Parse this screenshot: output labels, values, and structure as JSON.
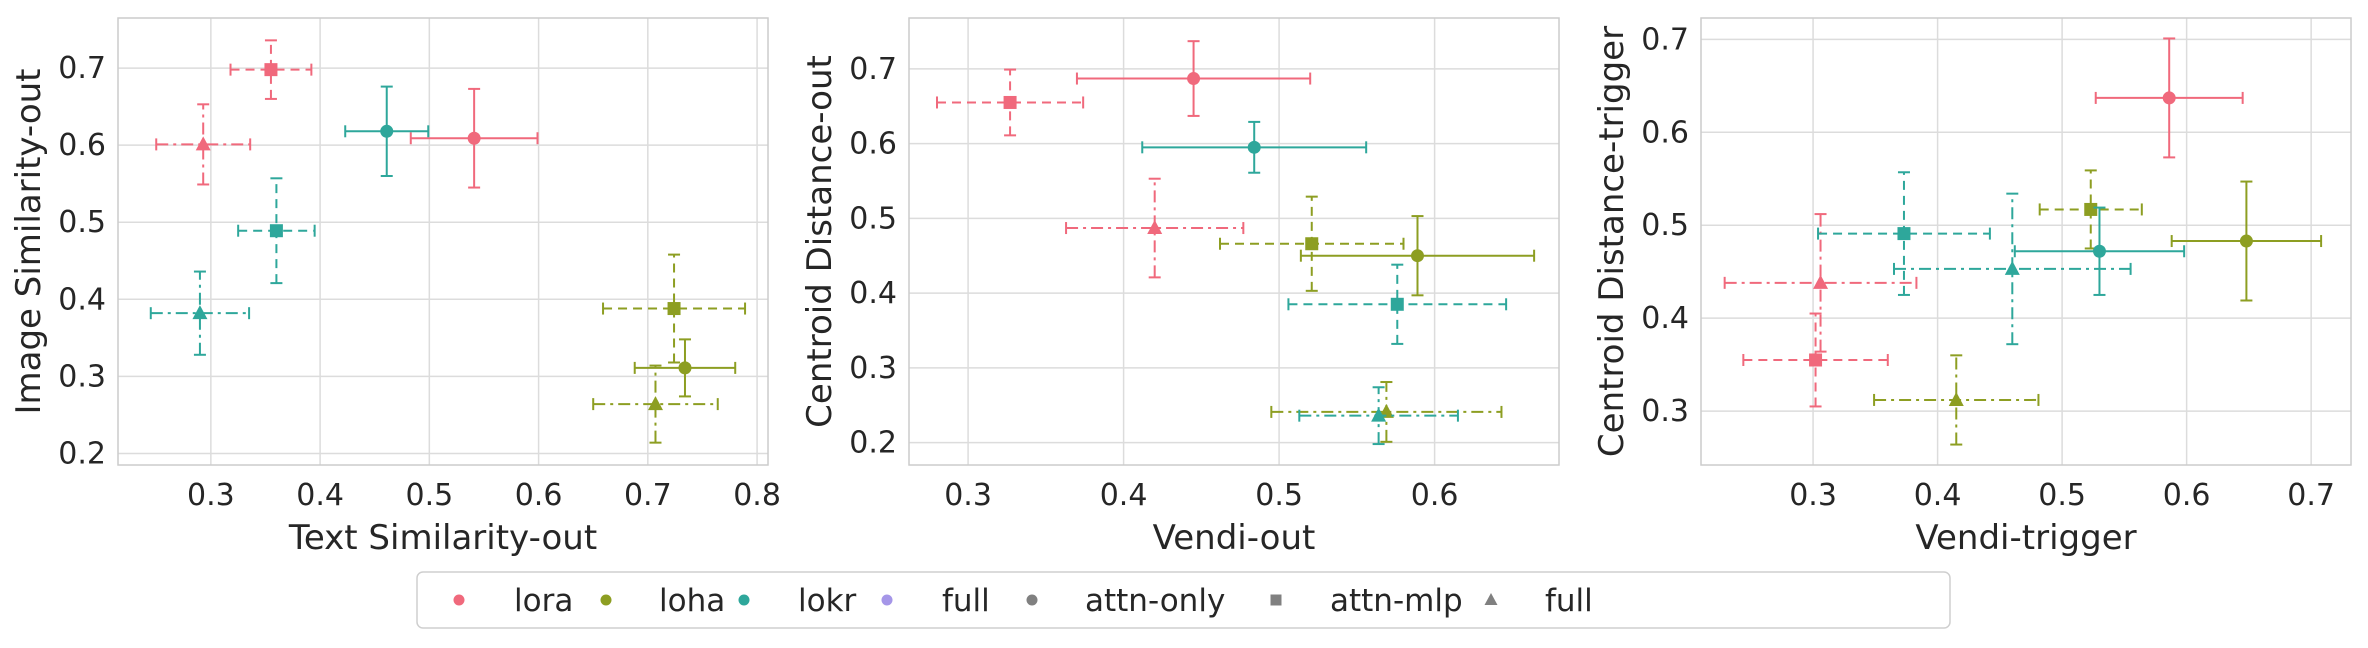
{
  "colors": {
    "lora": "#f0697c",
    "loha": "#8d9e22",
    "lokr": "#2ea79b",
    "full": "#a596e8",
    "neutral": "#808080"
  },
  "chart_data": [
    {
      "type": "scatter",
      "xlabel": "Text Similarity-out",
      "ylabel": "Image Similarity-out",
      "xlim": [
        0.215,
        0.81
      ],
      "ylim": [
        0.185,
        0.765
      ],
      "xticks": [
        0.3,
        0.4,
        0.5,
        0.6,
        0.7,
        0.8
      ],
      "yticks": [
        0.2,
        0.3,
        0.4,
        0.5,
        0.6,
        0.7
      ],
      "points": [
        {
          "method": "lora",
          "variant": "attn-only",
          "x": 0.541,
          "y": 0.609,
          "xerr": 0.058,
          "yerr": 0.064
        },
        {
          "method": "lora",
          "variant": "attn-mlp",
          "x": 0.355,
          "y": 0.698,
          "xerr": 0.037,
          "yerr": 0.038
        },
        {
          "method": "lora",
          "variant": "full",
          "x": 0.293,
          "y": 0.601,
          "xerr": 0.043,
          "yerr": 0.052
        },
        {
          "method": "loha",
          "variant": "attn-only",
          "x": 0.734,
          "y": 0.311,
          "xerr": 0.046,
          "yerr": 0.037
        },
        {
          "method": "loha",
          "variant": "attn-mlp",
          "x": 0.724,
          "y": 0.388,
          "xerr": 0.065,
          "yerr": 0.07
        },
        {
          "method": "loha",
          "variant": "full",
          "x": 0.707,
          "y": 0.264,
          "xerr": 0.057,
          "yerr": 0.05
        },
        {
          "method": "lokr",
          "variant": "attn-only",
          "x": 0.461,
          "y": 0.618,
          "xerr": 0.038,
          "yerr": 0.058
        },
        {
          "method": "lokr",
          "variant": "attn-mlp",
          "x": 0.36,
          "y": 0.489,
          "xerr": 0.035,
          "yerr": 0.068
        },
        {
          "method": "lokr",
          "variant": "full",
          "x": 0.29,
          "y": 0.382,
          "xerr": 0.045,
          "yerr": 0.054
        }
      ]
    },
    {
      "type": "scatter",
      "xlabel": "Vendi-out",
      "ylabel": "Centroid Distance-out",
      "xlim": [
        0.262,
        0.68
      ],
      "ylim": [
        0.17,
        0.768
      ],
      "xticks": [
        0.3,
        0.4,
        0.5,
        0.6
      ],
      "yticks": [
        0.2,
        0.3,
        0.4,
        0.5,
        0.6,
        0.7
      ],
      "points": [
        {
          "method": "lora",
          "variant": "attn-only",
          "x": 0.445,
          "y": 0.687,
          "xerr": 0.075,
          "yerr": 0.05
        },
        {
          "method": "lora",
          "variant": "attn-mlp",
          "x": 0.327,
          "y": 0.655,
          "xerr": 0.047,
          "yerr": 0.044
        },
        {
          "method": "lora",
          "variant": "full",
          "x": 0.42,
          "y": 0.487,
          "xerr": 0.057,
          "yerr": 0.066
        },
        {
          "method": "loha",
          "variant": "attn-only",
          "x": 0.589,
          "y": 0.45,
          "xerr": 0.075,
          "yerr": 0.053
        },
        {
          "method": "loha",
          "variant": "attn-mlp",
          "x": 0.521,
          "y": 0.466,
          "xerr": 0.059,
          "yerr": 0.063
        },
        {
          "method": "loha",
          "variant": "full",
          "x": 0.569,
          "y": 0.241,
          "xerr": 0.074,
          "yerr": 0.04
        },
        {
          "method": "lokr",
          "variant": "attn-only",
          "x": 0.484,
          "y": 0.595,
          "xerr": 0.072,
          "yerr": 0.034
        },
        {
          "method": "lokr",
          "variant": "attn-mlp",
          "x": 0.576,
          "y": 0.385,
          "xerr": 0.07,
          "yerr": 0.053
        },
        {
          "method": "lokr",
          "variant": "full",
          "x": 0.564,
          "y": 0.236,
          "xerr": 0.051,
          "yerr": 0.038
        }
      ]
    },
    {
      "type": "scatter",
      "xlabel": "Vendi-trigger",
      "ylabel": "Centroid Distance-trigger",
      "xlim": [
        0.21,
        0.732
      ],
      "ylim": [
        0.242,
        0.723
      ],
      "xticks": [
        0.3,
        0.4,
        0.5,
        0.6,
        0.7
      ],
      "yticks": [
        0.3,
        0.4,
        0.5,
        0.6,
        0.7
      ],
      "points": [
        {
          "method": "lora",
          "variant": "attn-only",
          "x": 0.586,
          "y": 0.637,
          "xerr": 0.059,
          "yerr": 0.064
        },
        {
          "method": "lora",
          "variant": "attn-mlp",
          "x": 0.302,
          "y": 0.355,
          "xerr": 0.058,
          "yerr": 0.05
        },
        {
          "method": "lora",
          "variant": "full",
          "x": 0.306,
          "y": 0.438,
          "xerr": 0.077,
          "yerr": 0.074
        },
        {
          "method": "loha",
          "variant": "attn-only",
          "x": 0.648,
          "y": 0.483,
          "xerr": 0.06,
          "yerr": 0.064
        },
        {
          "method": "loha",
          "variant": "attn-mlp",
          "x": 0.523,
          "y": 0.517,
          "xerr": 0.041,
          "yerr": 0.042
        },
        {
          "method": "loha",
          "variant": "full",
          "x": 0.415,
          "y": 0.312,
          "xerr": 0.066,
          "yerr": 0.048
        },
        {
          "method": "lokr",
          "variant": "attn-only",
          "x": 0.53,
          "y": 0.472,
          "xerr": 0.068,
          "yerr": 0.047
        },
        {
          "method": "lokr",
          "variant": "attn-mlp",
          "x": 0.373,
          "y": 0.491,
          "xerr": 0.069,
          "yerr": 0.066
        },
        {
          "method": "lokr",
          "variant": "full",
          "x": 0.46,
          "y": 0.453,
          "xerr": 0.095,
          "yerr": 0.081
        }
      ]
    }
  ],
  "legend": {
    "placement": "bottom-center",
    "items": [
      {
        "label": "lora",
        "marker": "circle",
        "color_key": "lora"
      },
      {
        "label": "loha",
        "marker": "circle",
        "color_key": "loha"
      },
      {
        "label": "lokr",
        "marker": "circle",
        "color_key": "lokr"
      },
      {
        "label": "full",
        "marker": "circle",
        "color_key": "full"
      },
      {
        "label": "attn-only",
        "marker": "circle",
        "color_key": "neutral"
      },
      {
        "label": "attn-mlp",
        "marker": "square",
        "color_key": "neutral"
      },
      {
        "label": "full",
        "marker": "triangle",
        "color_key": "neutral"
      }
    ]
  },
  "style": {
    "grid": true,
    "marker_by_variant": {
      "attn-only": "circle",
      "attn-mlp": "square",
      "full": "triangle"
    },
    "dash_by_variant": {
      "attn-only": "solid",
      "attn-mlp": "dashed",
      "full": "dashdot"
    }
  }
}
